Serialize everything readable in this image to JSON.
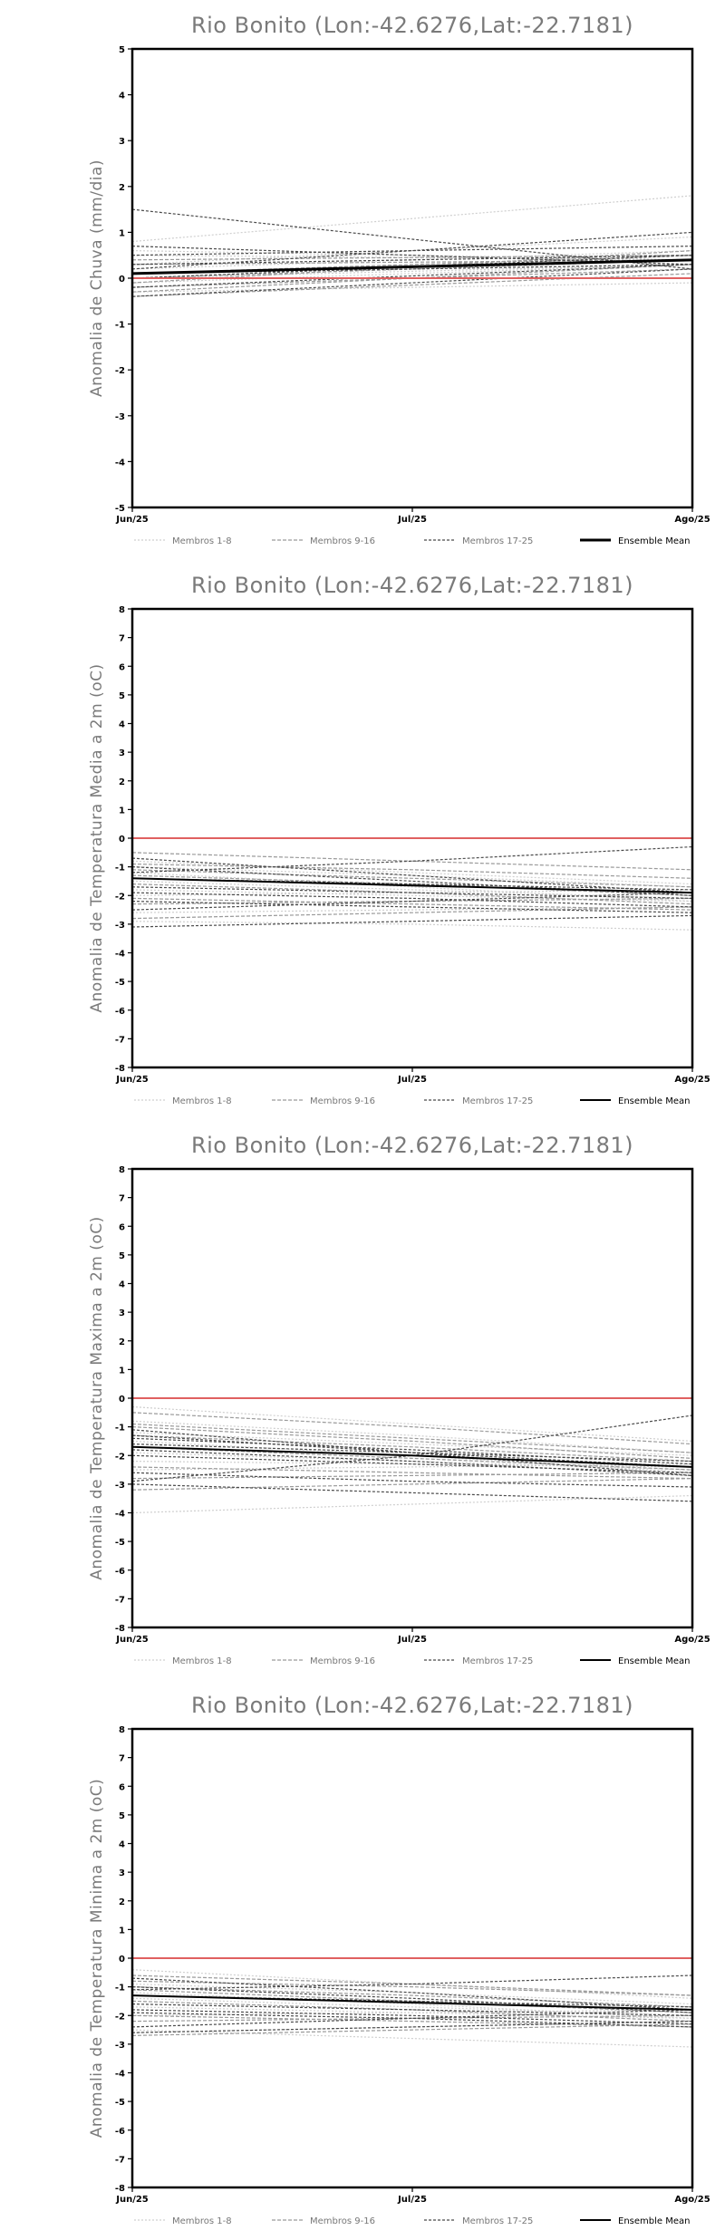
{
  "colors": {
    "frame": "#000000",
    "zero_line": "#e06060",
    "membros_1_8": "#cfcfcf",
    "membros_9_16": "#9a9a9a",
    "membros_17_25": "#4a4a4a",
    "ensemble_mean": "#000000",
    "title": "#7a7a7a"
  },
  "legend": {
    "placement": "bottom",
    "entries": [
      {
        "label": "Membros 1-8",
        "style": "dotted"
      },
      {
        "label": "Membros 9-16",
        "style": "dashed"
      },
      {
        "label": "Membros 17-25",
        "style": "dashed"
      },
      {
        "label": "Ensemble Mean",
        "style": "solid"
      }
    ]
  },
  "chart_data": [
    {
      "type": "line",
      "title": "Rio Bonito (Lon:-42.6276,Lat:-22.7181)",
      "ylabel": "Anomalia de Chuva (mm/dia)",
      "x": [
        "Jun/25",
        "Jul/25",
        "Ago/25"
      ],
      "ylim": [
        -5,
        5
      ],
      "yticks": [
        -5,
        -4,
        -3,
        -2,
        -1,
        0,
        1,
        2,
        3,
        4,
        5
      ],
      "grid": false,
      "reference_line": 0,
      "mean_width": 3,
      "ensemble_mean": [
        0.1,
        0.25,
        0.4
      ],
      "members": [
        [
          0.8,
          1.3,
          1.8
        ],
        [
          0.3,
          0.6,
          0.9
        ],
        [
          -0.1,
          0.1,
          0.3
        ],
        [
          0.5,
          0.45,
          0.4
        ],
        [
          -0.3,
          -0.2,
          -0.1
        ],
        [
          0.2,
          0.4,
          0.6
        ],
        [
          0.0,
          0.15,
          0.3
        ],
        [
          0.6,
          0.5,
          0.4
        ],
        [
          -0.2,
          0.0,
          0.2
        ],
        [
          0.1,
          0.3,
          0.5
        ],
        [
          -0.4,
          -0.15,
          0.1
        ],
        [
          0.3,
          0.35,
          0.4
        ],
        [
          0.0,
          0.2,
          0.4
        ],
        [
          -0.1,
          0.25,
          0.6
        ],
        [
          0.4,
          0.45,
          0.5
        ],
        [
          -0.3,
          0.0,
          0.3
        ],
        [
          1.5,
          0.85,
          0.2
        ],
        [
          0.2,
          0.6,
          1.0
        ],
        [
          -0.2,
          0.05,
          0.3
        ],
        [
          0.7,
          0.5,
          0.3
        ],
        [
          0.0,
          0.25,
          0.5
        ],
        [
          -0.4,
          -0.1,
          0.2
        ],
        [
          0.3,
          0.4,
          0.5
        ],
        [
          0.1,
          0.2,
          0.3
        ],
        [
          0.5,
          0.6,
          0.7
        ]
      ]
    },
    {
      "type": "line",
      "title": "Rio Bonito (Lon:-42.6276,Lat:-22.7181)",
      "ylabel": "Anomalia de Temperatura Media a 2m (oC)",
      "x": [
        "Jun/25",
        "Jul/25",
        "Ago/25"
      ],
      "ylim": [
        -8,
        8
      ],
      "yticks": [
        -8,
        -7,
        -6,
        -5,
        -4,
        -3,
        -2,
        -1,
        0,
        1,
        2,
        3,
        4,
        5,
        6,
        7,
        8
      ],
      "grid": false,
      "reference_line": 0,
      "mean_width": 2,
      "ensemble_mean": [
        -1.4,
        -1.65,
        -1.9
      ],
      "members": [
        [
          -0.8,
          -1.2,
          -1.6
        ],
        [
          -1.5,
          -1.8,
          -2.1
        ],
        [
          -2.6,
          -2.5,
          -2.4
        ],
        [
          -1.0,
          -1.3,
          -1.7
        ],
        [
          -1.2,
          -1.7,
          -2.2
        ],
        [
          -2.0,
          -1.9,
          -1.8
        ],
        [
          -2.9,
          -3.0,
          -3.2
        ],
        [
          -1.8,
          -2.0,
          -2.2
        ],
        [
          -0.5,
          -0.8,
          -1.1
        ],
        [
          -1.1,
          -1.4,
          -1.7
        ],
        [
          -2.3,
          -2.2,
          -2.1
        ],
        [
          -1.6,
          -1.9,
          -2.3
        ],
        [
          -2.8,
          -2.6,
          -2.4
        ],
        [
          -1.3,
          -1.6,
          -2.0
        ],
        [
          -0.9,
          -1.1,
          -1.4
        ],
        [
          -2.1,
          -2.3,
          -2.5
        ],
        [
          -0.7,
          -1.3,
          -1.9
        ],
        [
          -1.4,
          -1.6,
          -1.8
        ],
        [
          -2.5,
          -2.2,
          -1.9
        ],
        [
          -1.9,
          -2.1,
          -2.4
        ],
        [
          -1.0,
          -1.5,
          -2.0
        ],
        [
          -3.1,
          -2.9,
          -2.7
        ],
        [
          -1.2,
          -0.8,
          -0.3
        ],
        [
          -1.7,
          -1.9,
          -2.1
        ],
        [
          -2.2,
          -2.4,
          -2.6
        ]
      ]
    },
    {
      "type": "line",
      "title": "Rio Bonito (Lon:-42.6276,Lat:-22.7181)",
      "ylabel": "Anomalia de Temperatura Maxima a 2m (oC)",
      "x": [
        "Jun/25",
        "Jul/25",
        "Ago/25"
      ],
      "ylim": [
        -8,
        8
      ],
      "yticks": [
        -8,
        -7,
        -6,
        -5,
        -4,
        -3,
        -2,
        -1,
        0,
        1,
        2,
        3,
        4,
        5,
        6,
        7,
        8
      ],
      "grid": false,
      "reference_line": 0,
      "mean_width": 2,
      "ensemble_mean": [
        -1.7,
        -2.0,
        -2.4
      ],
      "members": [
        [
          -0.3,
          -0.9,
          -1.5
        ],
        [
          -1.2,
          -1.6,
          -2.0
        ],
        [
          -2.5,
          -2.4,
          -2.3
        ],
        [
          -0.8,
          -1.3,
          -1.9
        ],
        [
          -1.5,
          -2.0,
          -2.6
        ],
        [
          -2.2,
          -2.3,
          -2.4
        ],
        [
          -4.0,
          -3.7,
          -3.4
        ],
        [
          -1.9,
          -2.2,
          -2.5
        ],
        [
          -0.5,
          -1.0,
          -1.6
        ],
        [
          -1.0,
          -1.5,
          -2.1
        ],
        [
          -2.8,
          -2.7,
          -2.6
        ],
        [
          -1.7,
          -2.1,
          -2.5
        ],
        [
          -3.2,
          -3.0,
          -2.8
        ],
        [
          -1.3,
          -1.7,
          -2.2
        ],
        [
          -0.9,
          -1.4,
          -1.9
        ],
        [
          -2.4,
          -2.6,
          -2.8
        ],
        [
          -1.1,
          -1.9,
          -2.7
        ],
        [
          -1.6,
          -1.9,
          -2.2
        ],
        [
          -3.0,
          -3.3,
          -3.6
        ],
        [
          -2.0,
          -2.3,
          -2.6
        ],
        [
          -1.4,
          -1.8,
          -2.3
        ],
        [
          -2.9,
          -2.0,
          -0.6
        ],
        [
          -1.3,
          -1.9,
          -2.4
        ],
        [
          -2.6,
          -2.9,
          -3.1
        ],
        [
          -1.8,
          -2.2,
          -2.7
        ]
      ]
    },
    {
      "type": "line",
      "title": "Rio Bonito (Lon:-42.6276,Lat:-22.7181)",
      "ylabel": "Anomalia de Temperatura Minima a 2m (oC)",
      "x": [
        "Jun/25",
        "Jul/25",
        "Ago/25"
      ],
      "ylim": [
        -8,
        8
      ],
      "yticks": [
        -8,
        -7,
        -6,
        -5,
        -4,
        -3,
        -2,
        -1,
        0,
        1,
        2,
        3,
        4,
        5,
        6,
        7,
        8
      ],
      "grid": false,
      "reference_line": 0,
      "mean_width": 2,
      "ensemble_mean": [
        -1.3,
        -1.55,
        -1.8
      ],
      "members": [
        [
          -0.4,
          -0.9,
          -1.4
        ],
        [
          -1.4,
          -1.7,
          -2.0
        ],
        [
          -2.6,
          -2.4,
          -2.2
        ],
        [
          -0.9,
          -1.2,
          -1.6
        ],
        [
          -1.2,
          -1.6,
          -2.1
        ],
        [
          -2.0,
          -1.9,
          -1.8
        ],
        [
          -2.5,
          -2.8,
          -3.1
        ],
        [
          -1.7,
          -1.9,
          -2.1
        ],
        [
          -0.6,
          -0.9,
          -1.3
        ],
        [
          -1.0,
          -1.3,
          -1.7
        ],
        [
          -2.2,
          -2.1,
          -2.0
        ],
        [
          -1.5,
          -1.8,
          -2.2
        ],
        [
          -2.7,
          -2.5,
          -2.3
        ],
        [
          -1.1,
          -1.5,
          -1.9
        ],
        [
          -0.8,
          -1.0,
          -1.3
        ],
        [
          -2.0,
          -2.2,
          -2.4
        ],
        [
          -0.7,
          -1.2,
          -1.8
        ],
        [
          -1.3,
          -1.5,
          -1.7
        ],
        [
          -2.4,
          -2.1,
          -1.8
        ],
        [
          -1.8,
          -2.0,
          -2.3
        ],
        [
          -1.0,
          -1.4,
          -1.9
        ],
        [
          -2.6,
          -2.4,
          -2.2
        ],
        [
          -1.1,
          -0.9,
          -0.6
        ],
        [
          -1.6,
          -1.8,
          -2.0
        ],
        [
          -1.9,
          -2.1,
          -2.4
        ]
      ]
    }
  ]
}
